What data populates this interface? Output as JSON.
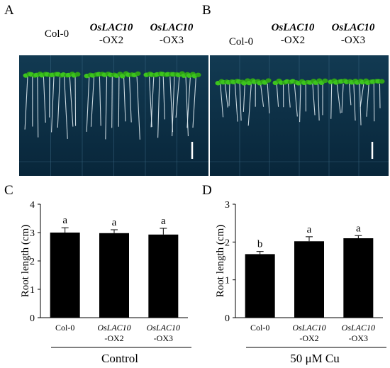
{
  "panels": {
    "A": {
      "letter": "A",
      "genotypes": [
        {
          "line1": "",
          "line2": "Col-0"
        },
        {
          "line1": "OsLAC10",
          "line2": "-OX2"
        },
        {
          "line1": "OsLAC10",
          "line2": "-OX3"
        }
      ]
    },
    "B": {
      "letter": "B",
      "genotypes": [
        {
          "line1": "",
          "line2": "Col-0"
        },
        {
          "line1": "OsLAC10",
          "line2": "-OX2"
        },
        {
          "line1": "OsLAC10",
          "line2": "-OX3"
        }
      ]
    }
  },
  "colors": {
    "plate_background": "#0b2f45",
    "leaf": "#3cc41e",
    "root": "#dfeaf0",
    "bar": "#000000"
  },
  "chart_data": [
    {
      "panel": "C",
      "type": "bar",
      "categories": [
        {
          "line1": "Col-0",
          "line2": ""
        },
        {
          "line1": "OsLAC10",
          "line2": "-OX2"
        },
        {
          "line1": "OsLAC10",
          "line2": "-OX3"
        }
      ],
      "values": [
        3.0,
        2.98,
        2.93
      ],
      "errors": [
        0.17,
        0.12,
        0.22
      ],
      "letters": [
        "a",
        "a",
        "a"
      ],
      "ylabel": "Root length (cm)",
      "ylim": [
        0,
        4
      ],
      "yticks": [
        "0",
        "1",
        "2",
        "3",
        "4"
      ],
      "condition": "Control"
    },
    {
      "panel": "D",
      "type": "bar",
      "categories": [
        {
          "line1": "Col-0",
          "line2": ""
        },
        {
          "line1": "OsLAC10",
          "line2": "-OX2"
        },
        {
          "line1": "OsLAC10",
          "line2": "-OX3"
        }
      ],
      "values": [
        1.68,
        2.02,
        2.1
      ],
      "errors": [
        0.07,
        0.12,
        0.07
      ],
      "letters": [
        "b",
        "a",
        "a"
      ],
      "ylabel": "Root length (cm)",
      "ylim": [
        0,
        3
      ],
      "yticks": [
        "0",
        "1",
        "2",
        "3"
      ],
      "condition": "50 μM Cu"
    }
  ]
}
